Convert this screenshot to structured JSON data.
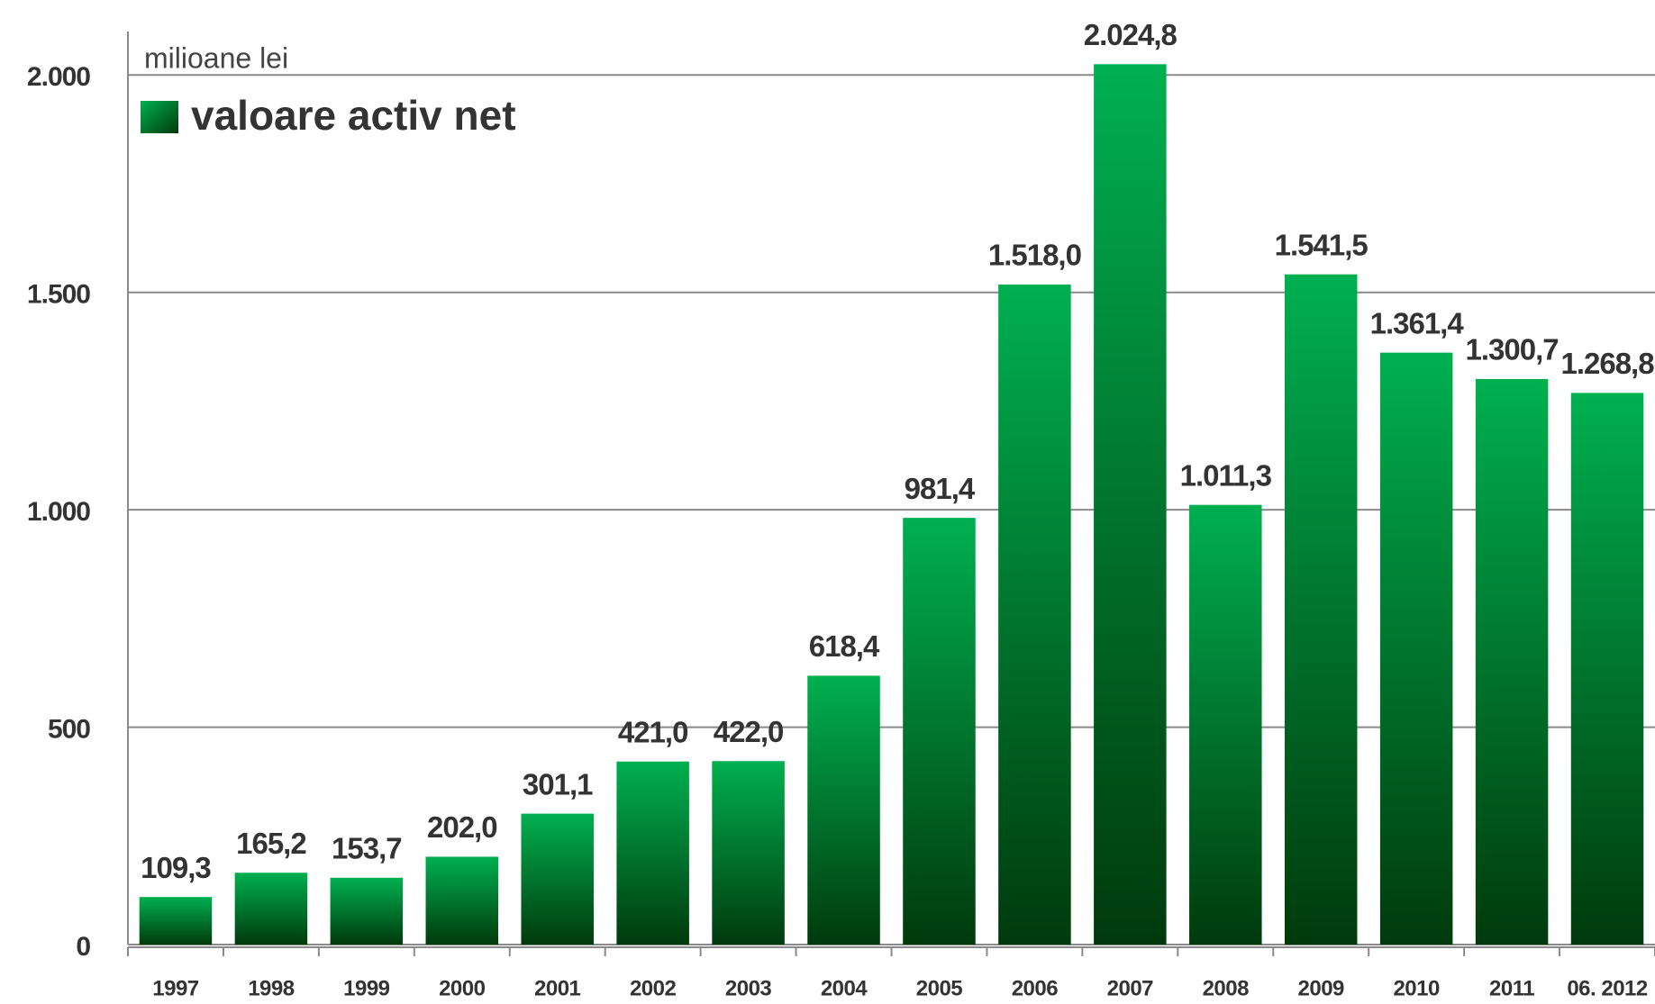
{
  "chart_data": {
    "type": "bar",
    "y_label": "milioane lei",
    "categories": [
      "1997",
      "1998",
      "1999",
      "2000",
      "2001",
      "2002",
      "2003",
      "2004",
      "2005",
      "2006",
      "2007",
      "2008",
      "2009",
      "2010",
      "2011",
      "06. 2012"
    ],
    "series": [
      {
        "name": "valoare activ net",
        "color": "#00b050",
        "values": [
          109.3,
          165.2,
          153.7,
          202.0,
          301.1,
          421.0,
          422.0,
          618.4,
          981.4,
          1518.0,
          2024.8,
          1011.3,
          1541.5,
          1361.4,
          1300.7,
          1268.8
        ],
        "value_labels": [
          "109,3",
          "165,2",
          "153,7",
          "202,0",
          "301,1",
          "421,0",
          "422,0",
          "618,4",
          "981,4",
          "1.518,0",
          "2.024,8",
          "1.011,3",
          "1.541,5",
          "1.361,4",
          "1.300,7",
          "1.268,8"
        ]
      }
    ],
    "ylim": [
      0,
      2100
    ],
    "yticks": [
      0,
      500,
      {
        "value": 1000,
        "label": "1.000"
      },
      {
        "value": 1500,
        "label": "1.500"
      },
      {
        "value": 2000,
        "label": "2.000"
      }
    ],
    "grid": true
  }
}
